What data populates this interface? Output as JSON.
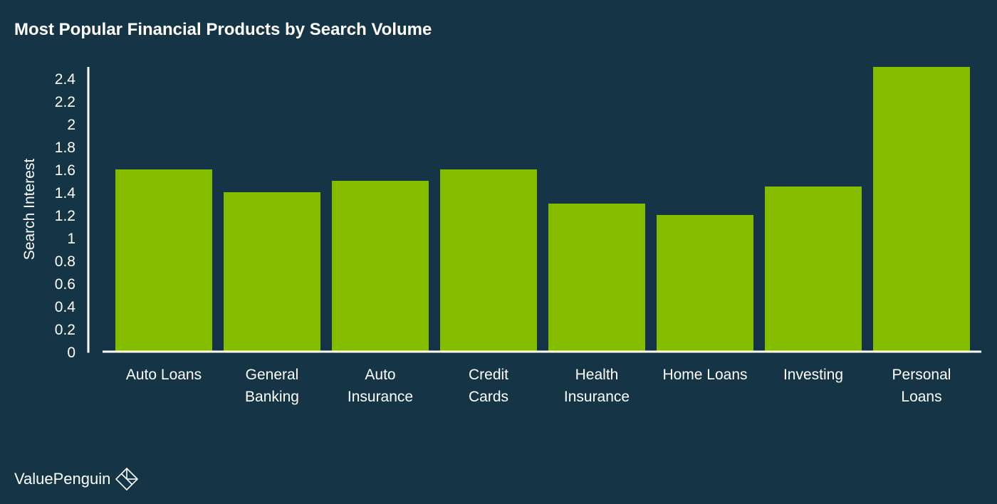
{
  "brand": {
    "name": "ValuePenguin",
    "logo_icon": "penguin-diamond-icon"
  },
  "colors": {
    "background": "#153546",
    "bar": "#86bc00",
    "text": "#ffffff",
    "axis": "#ffffff"
  },
  "chart_data": {
    "type": "bar",
    "title": "Most Popular Financial Products by Search Volume",
    "xlabel": "",
    "ylabel": "Search Interest",
    "ylim": [
      0,
      2.5
    ],
    "yticks": [
      0,
      0.2,
      0.4,
      0.6,
      0.8,
      1,
      1.2,
      1.4,
      1.6,
      1.8,
      2,
      2.2,
      2.4
    ],
    "ytick_labels": [
      "0",
      "0.2",
      "0.4",
      "0.6",
      "0.8",
      "1",
      "1.2",
      "1.4",
      "1.6",
      "1.8",
      "2",
      "2.2",
      "2.4"
    ],
    "grid": false,
    "legend": "none",
    "categories": [
      "Auto Loans",
      "General Banking",
      "Auto Insurance",
      "Credit Cards",
      "Health Insurance",
      "Home Loans",
      "Investing",
      "Personal Loans"
    ],
    "category_label_lines": [
      [
        "Auto Loans"
      ],
      [
        "General",
        "Banking"
      ],
      [
        "Auto",
        "Insurance"
      ],
      [
        "Credit",
        "Cards"
      ],
      [
        "Health",
        "Insurance"
      ],
      [
        "Home Loans"
      ],
      [
        "Investing"
      ],
      [
        "Personal",
        "Loans"
      ]
    ],
    "values": [
      1.6,
      1.4,
      1.5,
      1.6,
      1.3,
      1.2,
      1.45,
      2.5
    ]
  }
}
